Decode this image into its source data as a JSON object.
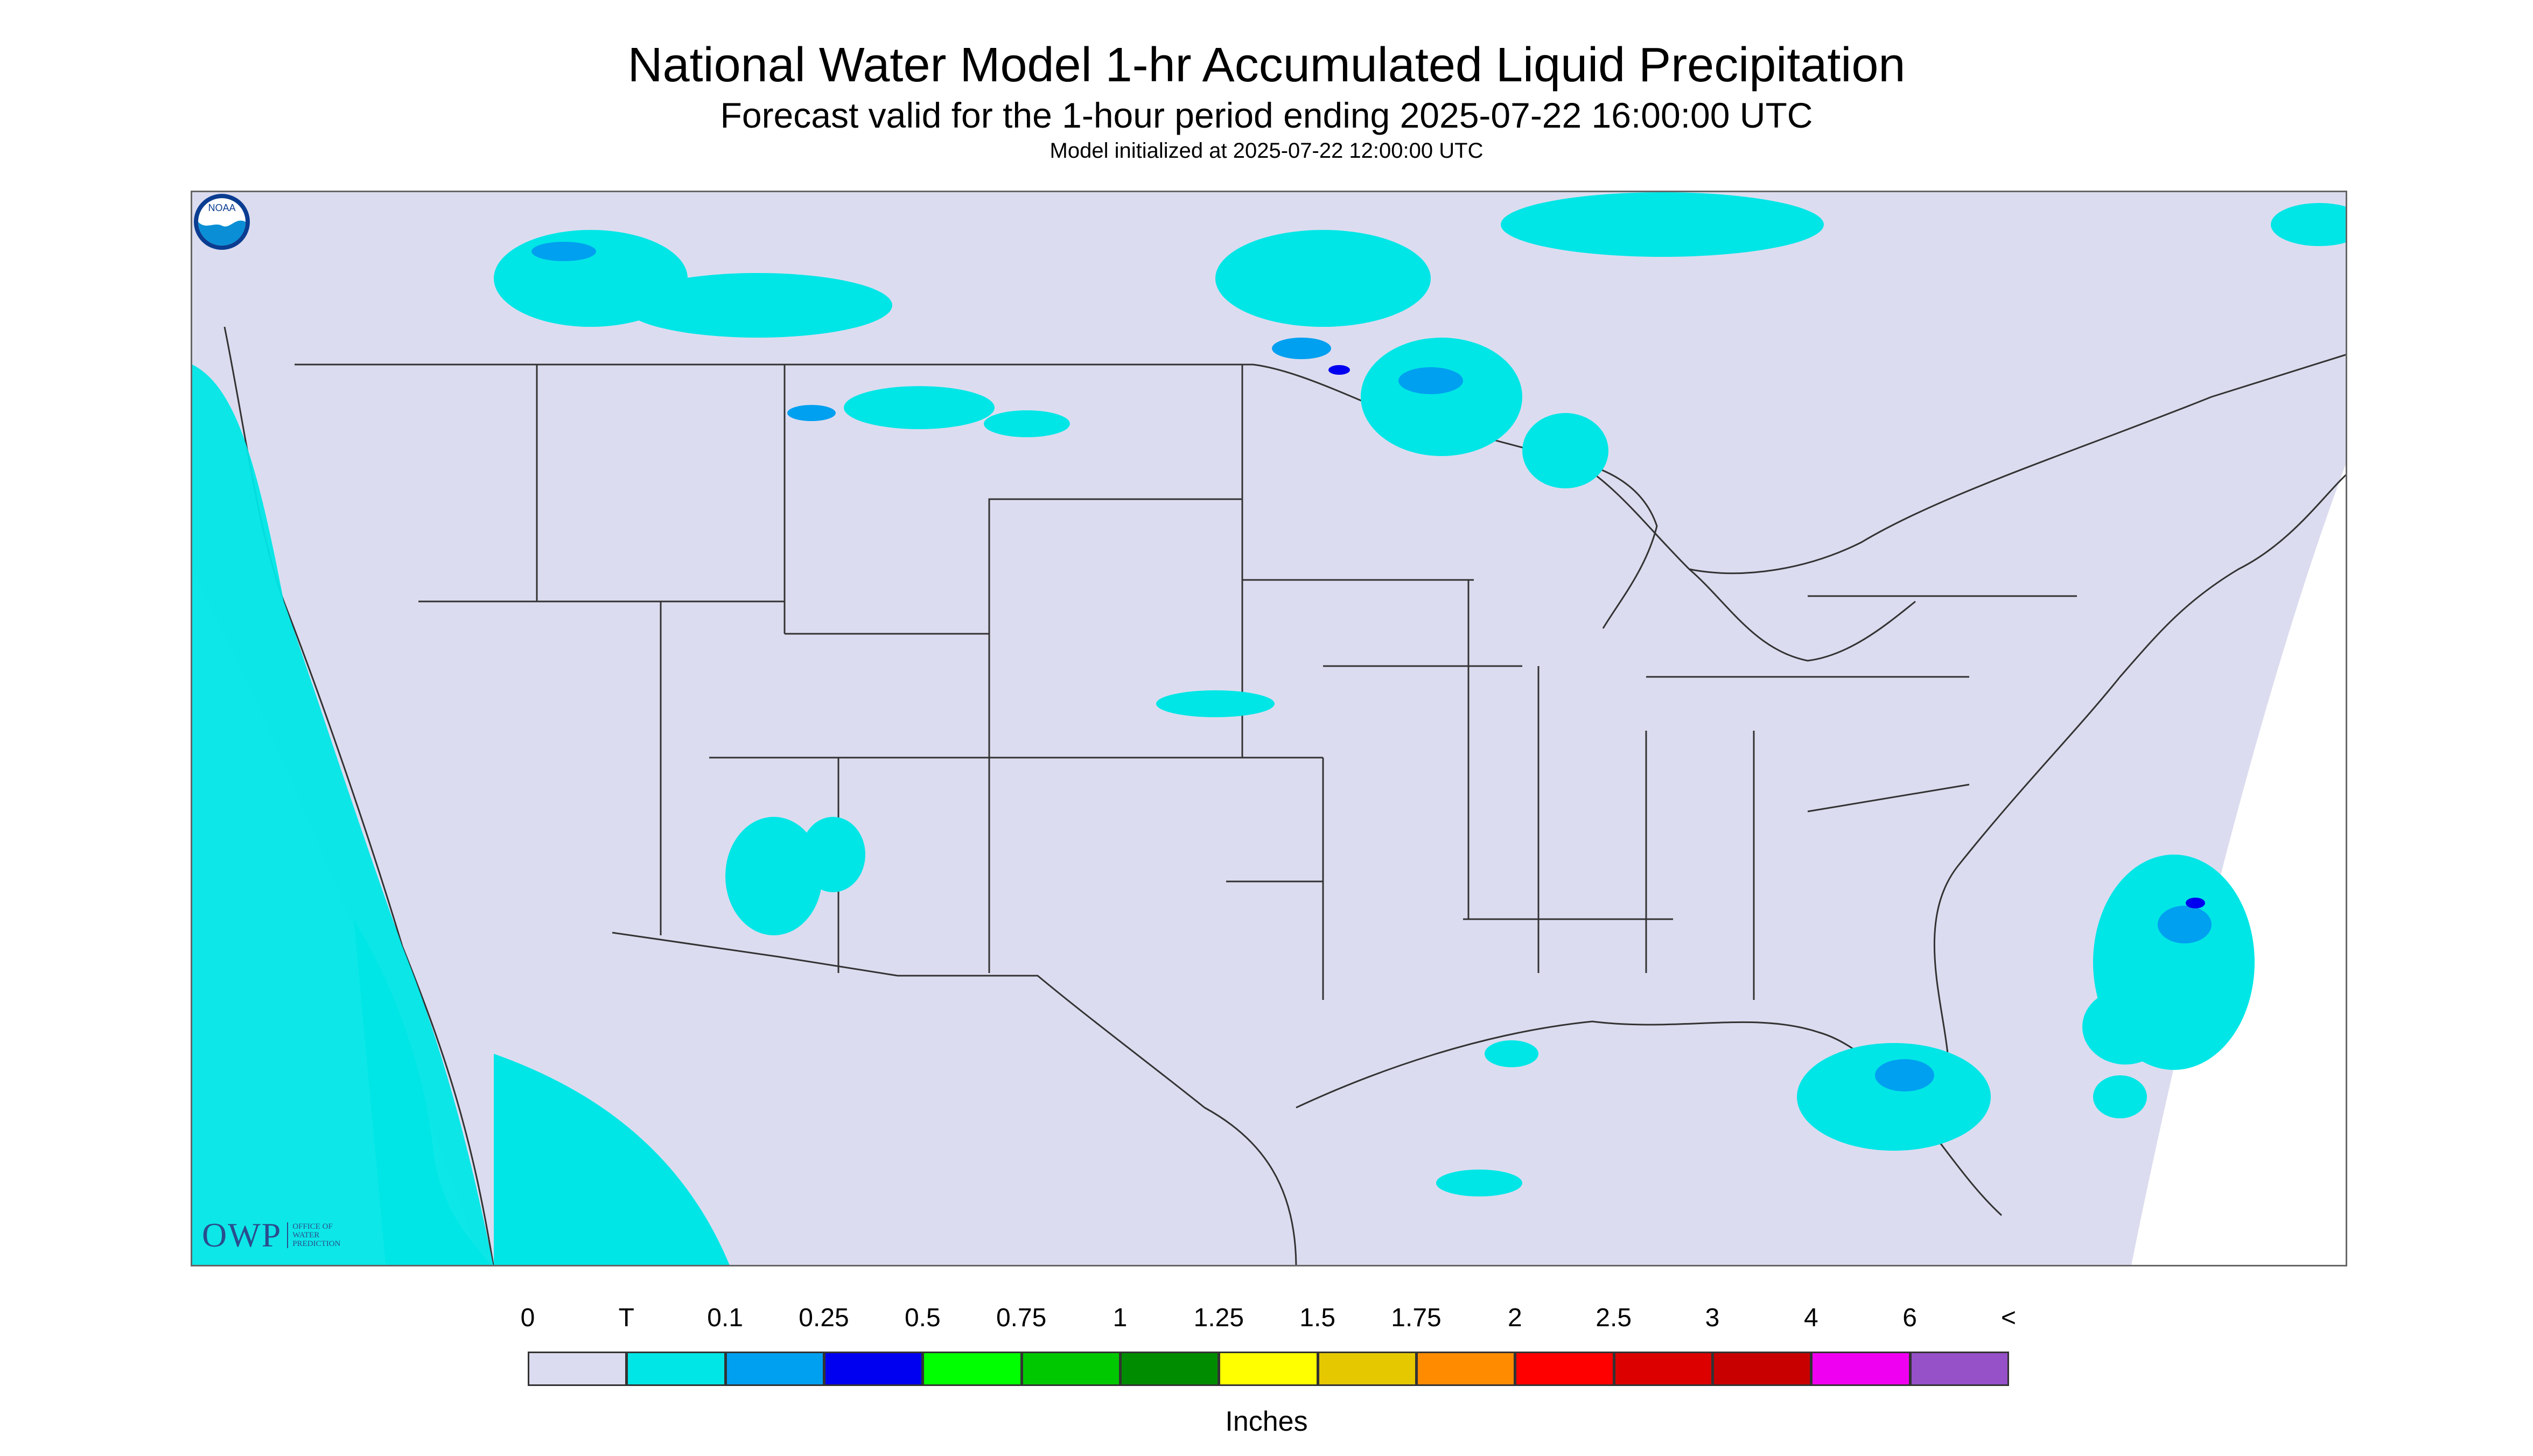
{
  "header": {
    "title": "National Water Model 1-hr Accumulated Liquid Precipitation",
    "subtitle": "Forecast valid for the 1-hour period ending 2025-07-22 16:00:00 UTC",
    "init": "Model initialized at 2025-07-22 12:00:00 UTC"
  },
  "logos": {
    "owp_letters": "OWP",
    "owp_text": [
      "OFFICE OF",
      "WATER",
      "PREDICTION"
    ],
    "noaa": "NOAA"
  },
  "colors": {
    "background": "#dcdcf0",
    "outside_domain": "#ffffff",
    "boundary": "#333333"
  },
  "legend": {
    "labels": [
      "0",
      "T",
      "0.1",
      "0.25",
      "0.5",
      "0.75",
      "1",
      "1.25",
      "1.5",
      "1.75",
      "2",
      "2.5",
      "3",
      "4",
      "6",
      "<"
    ],
    "colors": [
      "#dcdcf0",
      "#00e6e6",
      "#00a0f0",
      "#0000f0",
      "#00ff00",
      "#00c800",
      "#008c00",
      "#ffff00",
      "#e6c800",
      "#ff8c00",
      "#ff0000",
      "#dc0000",
      "#c80000",
      "#f000f0",
      "#9650c8"
    ],
    "units": "Inches"
  }
}
